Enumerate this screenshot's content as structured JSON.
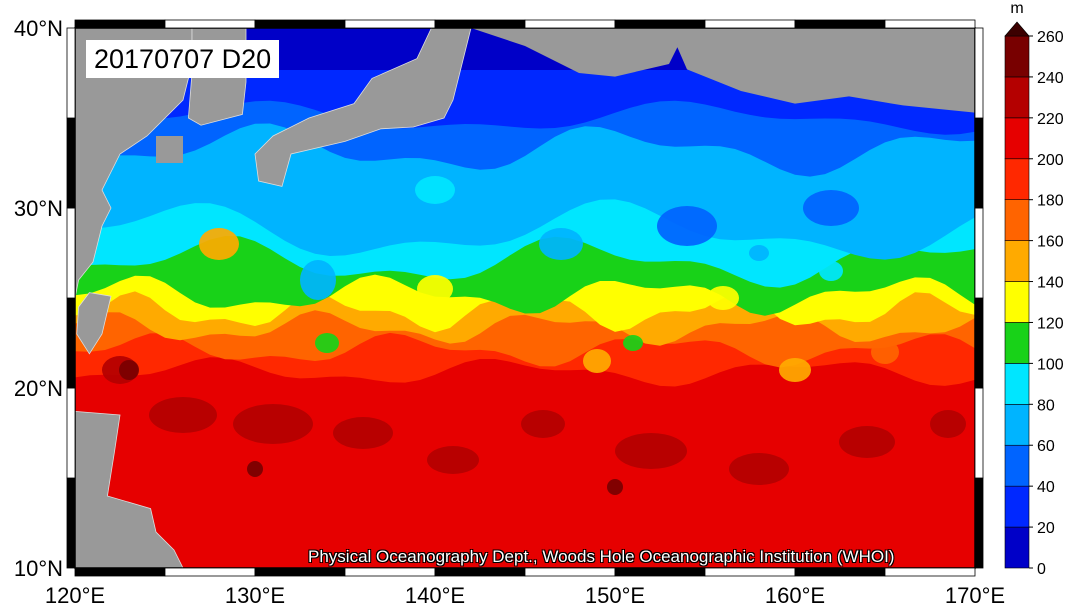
{
  "map": {
    "title": "20170707 D20",
    "credit": "Physical Oceanography Dept., Woods Hole Oceanographic Institution (WHOI)",
    "lon_range": [
      120,
      170
    ],
    "lat_range": [
      10,
      40
    ],
    "lon_ticks": [
      "120°E",
      "130°E",
      "140°E",
      "150°E",
      "160°E",
      "170°E"
    ],
    "lat_ticks": [
      "10°N",
      "20°N",
      "30°N",
      "40°N"
    ],
    "land_color": "#999999",
    "border_color": "#dddddd"
  },
  "colorbar": {
    "unit": "m",
    "labels": [
      "0",
      "20",
      "40",
      "60",
      "80",
      "100",
      "120",
      "140",
      "160",
      "180",
      "200",
      "220",
      "240",
      "260"
    ],
    "colors": [
      "#0000c8",
      "#0028ff",
      "#0064ff",
      "#00b4ff",
      "#00e6ff",
      "#18d218",
      "#ffff00",
      "#ffaa00",
      "#ff6400",
      "#ff2800",
      "#e60000",
      "#b40000",
      "#780000"
    ],
    "top_arrow_color": "#3c0000"
  }
}
